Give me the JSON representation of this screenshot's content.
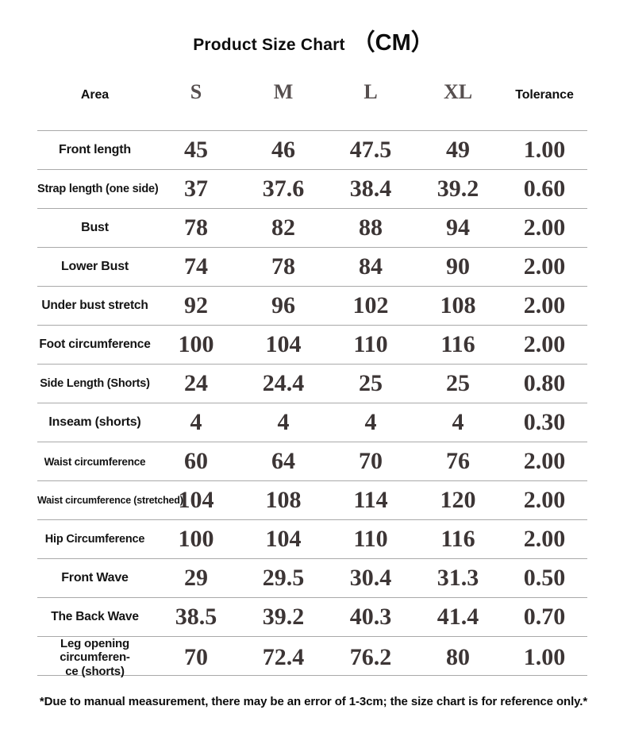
{
  "chart_data": {
    "type": "table",
    "title": "Product Size Chart",
    "unit_label": "（CM）",
    "columns": [
      "Area",
      "S",
      "M",
      "L",
      "XL",
      "Tolerance"
    ],
    "rows": [
      {
        "label": "Front length",
        "values": [
          "45",
          "46",
          "47.5",
          "49",
          "1.00"
        ]
      },
      {
        "label": "Strap length (one side)",
        "values": [
          "37",
          "37.6",
          "38.4",
          "39.2",
          "0.60"
        ]
      },
      {
        "label": "Bust",
        "values": [
          "78",
          "82",
          "88",
          "94",
          "2.00"
        ]
      },
      {
        "label": "Lower Bust",
        "values": [
          "74",
          "78",
          "84",
          "90",
          "2.00"
        ]
      },
      {
        "label": "Under bust stretch",
        "values": [
          "92",
          "96",
          "102",
          "108",
          "2.00"
        ]
      },
      {
        "label": "Foot circumference",
        "values": [
          "100",
          "104",
          "110",
          "116",
          "2.00"
        ]
      },
      {
        "label": "Side Length (Shorts)",
        "values": [
          "24",
          "24.4",
          "25",
          "25",
          "0.80"
        ]
      },
      {
        "label": "Inseam (shorts)",
        "values": [
          "4",
          "4",
          "4",
          "4",
          "0.30"
        ]
      },
      {
        "label": "Waist circumference",
        "values": [
          "60",
          "64",
          "70",
          "76",
          "2.00"
        ]
      },
      {
        "label": "Waist circumference (stretched)",
        "values": [
          "104",
          "108",
          "114",
          "120",
          "2.00"
        ]
      },
      {
        "label": "Hip Circumference",
        "values": [
          "100",
          "104",
          "110",
          "116",
          "2.00"
        ]
      },
      {
        "label": "Front Wave",
        "values": [
          "29",
          "29.5",
          "30.4",
          "31.3",
          "0.50"
        ]
      },
      {
        "label": "The Back Wave",
        "values": [
          "38.5",
          "39.2",
          "40.3",
          "41.4",
          "0.70"
        ]
      },
      {
        "label": "Leg opening circumferen-\nce (shorts)",
        "values": [
          "70",
          "72.4",
          "76.2",
          "80",
          "1.00"
        ]
      }
    ],
    "footnote": "*Due to manual measurement, there may be an error of 1-3cm; the size chart is for reference only.*",
    "colors": {
      "number_text": "#3c3535",
      "label_text": "#141414",
      "separator_line": "#a9a9a9",
      "size_header_text": "#564f4f"
    },
    "layout": {
      "grid": "horizontal separator lines only",
      "legend": "none"
    }
  }
}
